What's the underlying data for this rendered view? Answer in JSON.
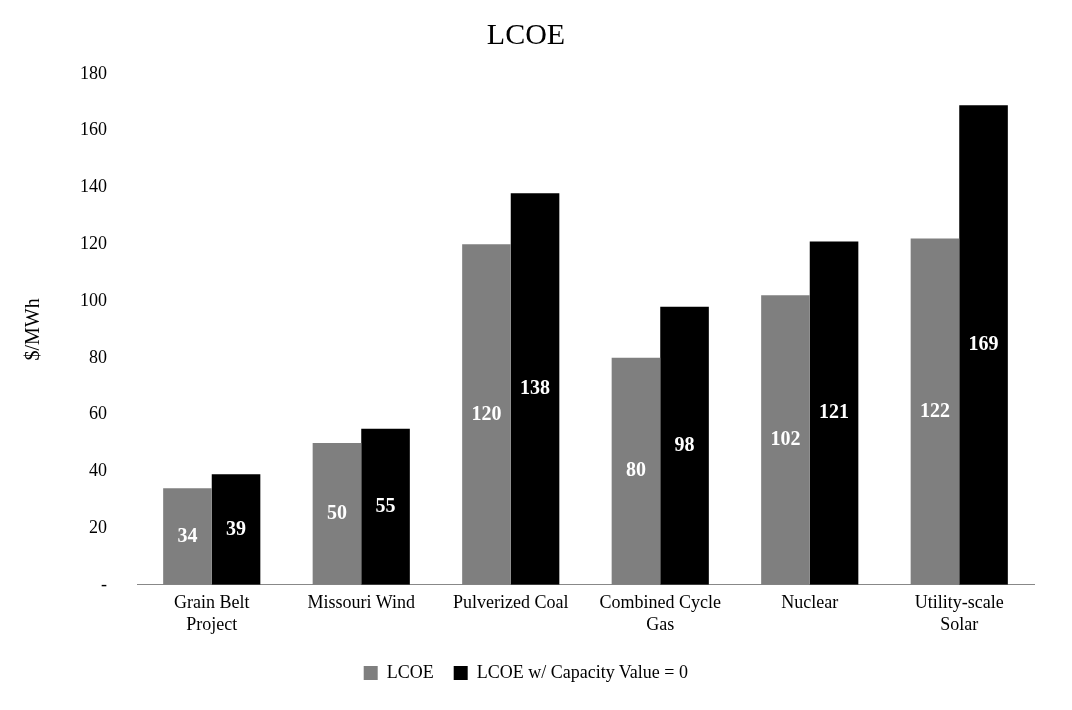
{
  "chart_data": {
    "type": "bar",
    "title": "LCOE",
    "ylabel": "$/MWh",
    "categories": [
      "Grain Belt Project",
      "Missouri Wind",
      "Pulverized Coal",
      "Combined Cycle Gas",
      "Nuclear",
      "Utility-scale Solar"
    ],
    "series": [
      {
        "name": "LCOE",
        "color": "#7f7f7f",
        "values": [
          34,
          50,
          120,
          80,
          102,
          122
        ]
      },
      {
        "name": "LCOE w/ Capacity Value = 0",
        "color": "#000000",
        "values": [
          39,
          55,
          138,
          98,
          121,
          169
        ]
      }
    ],
    "ylim": [
      0,
      180
    ],
    "yticks": [
      {
        "value": 0,
        "label": "-"
      },
      20,
      40,
      60,
      80,
      100,
      120,
      140,
      160,
      180
    ],
    "grid": false,
    "legend": "bottom",
    "data_labels": true
  }
}
